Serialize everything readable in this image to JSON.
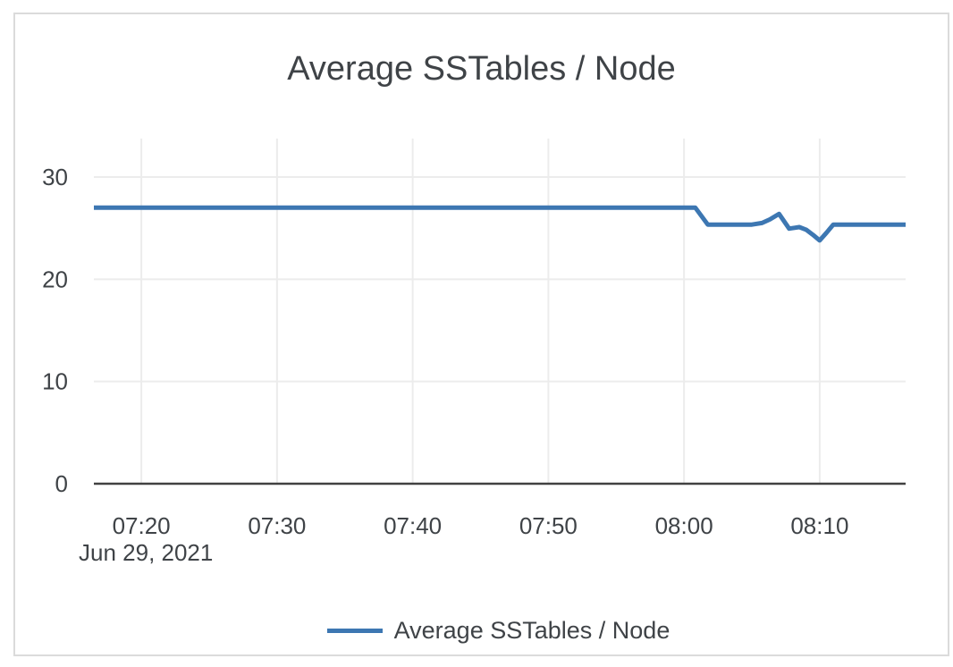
{
  "colors": {
    "series_blue": "#3d77b2",
    "gridline": "#ececec",
    "axis": "#414141",
    "text": "#3f4347",
    "card_border": "#dbdbdb",
    "background": "#ffffff"
  },
  "chart_data": {
    "type": "line",
    "title": "Average SSTables / Node",
    "xlabel": "",
    "ylabel": "",
    "x_date_label": "Jun 29, 2021",
    "x_ticks": [
      "07:20",
      "07:30",
      "07:40",
      "07:50",
      "08:00",
      "08:10"
    ],
    "x_range": [
      "07:16:30",
      "08:16:20"
    ],
    "y_ticks": [
      0,
      10,
      20,
      30
    ],
    "y_range": [
      0,
      33.76
    ],
    "grid": true,
    "legend": {
      "position": "bottom",
      "entries": [
        {
          "label": "Average SSTables / Node",
          "color": "#3d77b2"
        }
      ]
    },
    "series": [
      {
        "name": "Average SSTables / Node",
        "color": "#3d77b2",
        "points": [
          [
            "07:16:30",
            27
          ],
          [
            "08:00:50",
            27
          ],
          [
            "08:01:45",
            25.35
          ],
          [
            "08:05:00",
            25.35
          ],
          [
            "08:05:45",
            25.5
          ],
          [
            "08:06:20",
            25.85
          ],
          [
            "08:07:00",
            26.4
          ],
          [
            "08:07:45",
            24.95
          ],
          [
            "08:08:30",
            25.1
          ],
          [
            "08:09:00",
            24.85
          ],
          [
            "08:09:30",
            24.35
          ],
          [
            "08:10:00",
            23.8
          ],
          [
            "08:10:30",
            24.55
          ],
          [
            "08:11:00",
            25.35
          ],
          [
            "08:16:20",
            25.35
          ]
        ]
      }
    ]
  }
}
